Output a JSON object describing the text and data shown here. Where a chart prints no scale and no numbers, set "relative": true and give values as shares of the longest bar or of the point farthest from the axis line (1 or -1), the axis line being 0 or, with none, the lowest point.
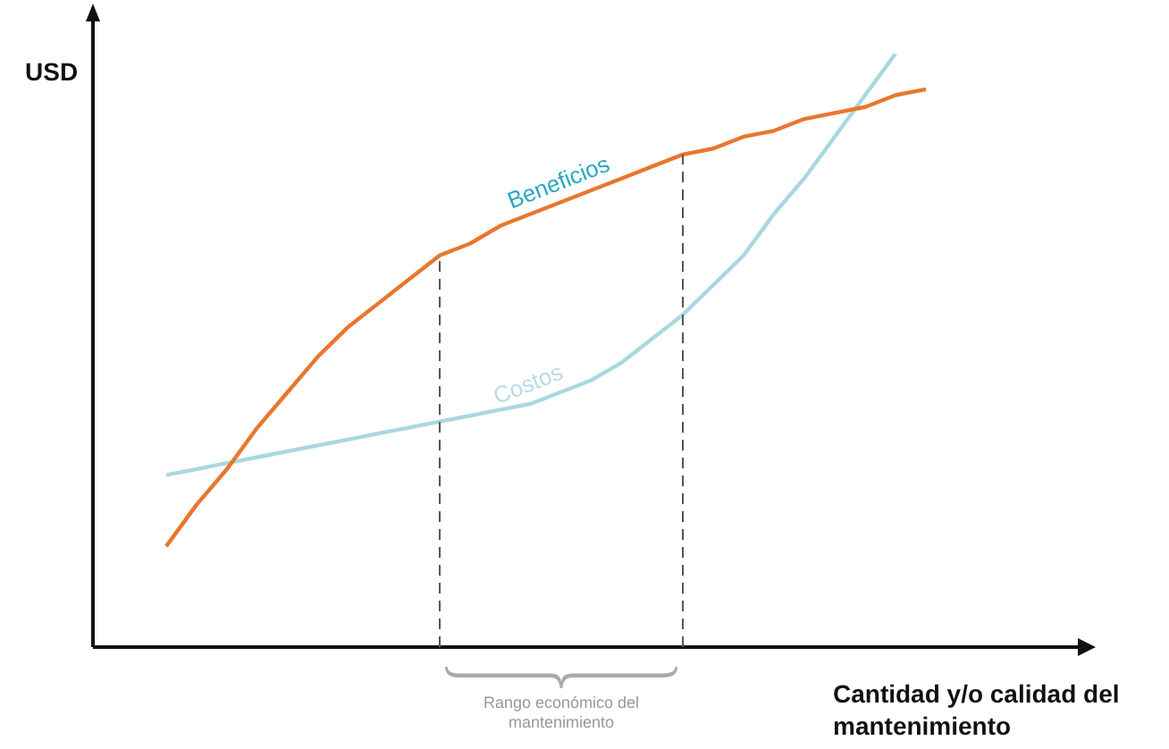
{
  "chart_data": {
    "type": "line",
    "relative": true,
    "ylabel": "USD",
    "xlabel": "Cantidad y/o calidad del mantenimiento",
    "marker": "none",
    "categories": [
      null,
      null,
      null,
      null,
      null,
      null,
      null,
      null,
      null,
      null,
      null,
      null,
      null,
      null,
      null,
      null,
      null,
      null,
      null,
      null,
      null,
      null,
      null,
      null,
      null,
      null
    ],
    "series": [
      {
        "name": "Beneficios",
        "color": "#e8772e",
        "values": [
          0.17,
          0.24,
          0.3,
          0.37,
          0.43,
          0.49,
          0.54,
          0.58,
          0.62,
          0.66,
          0.68,
          0.71,
          0.73,
          0.75,
          0.77,
          0.79,
          0.81,
          0.83,
          0.84,
          0.86,
          0.87,
          0.89,
          0.9,
          0.91,
          0.93,
          0.94
        ]
      },
      {
        "name": "Costos",
        "color": "#a8d8e0",
        "values": [
          0.29,
          0.3,
          0.31,
          0.32,
          0.33,
          0.34,
          0.35,
          0.36,
          0.37,
          0.38,
          0.39,
          0.4,
          0.41,
          0.43,
          0.45,
          0.48,
          0.52,
          0.56,
          0.61,
          0.66,
          0.73,
          0.79,
          0.86,
          0.93,
          1,
          null
        ]
      }
    ],
    "annotations": [
      "Rango económico del mantenimiento"
    ]
  }
}
